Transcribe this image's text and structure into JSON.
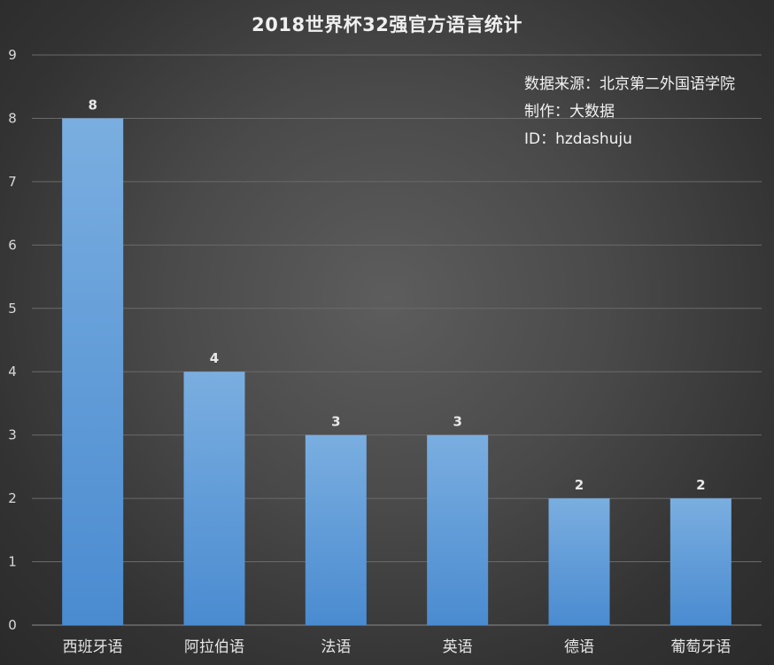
{
  "chart_data": {
    "type": "bar",
    "title": "2018世界杯32强官方语言统计",
    "categories": [
      "西班牙语",
      "阿拉伯语",
      "法语",
      "英语",
      "德语",
      "葡萄牙语"
    ],
    "values": [
      8,
      4,
      3,
      3,
      2,
      2
    ],
    "ylim": [
      0,
      9
    ],
    "yticks": [
      0,
      1,
      2,
      3,
      4,
      5,
      6,
      7,
      8,
      9
    ],
    "xlabel": "",
    "ylabel": "",
    "grid": true,
    "legend": "none",
    "data_labels": true,
    "colors": {
      "bar_top": "#7aaee0",
      "bar_bottom": "#4a8bd0",
      "background_center": "#5d5d5d",
      "background_edge": "#2a2a2a",
      "gridline": "#6a6a6a",
      "text": "#e6e6e6"
    }
  },
  "info": {
    "source": "数据来源：北京第二外国语学院",
    "maker": "制作：大数据",
    "id": "ID：hzdashuju"
  }
}
